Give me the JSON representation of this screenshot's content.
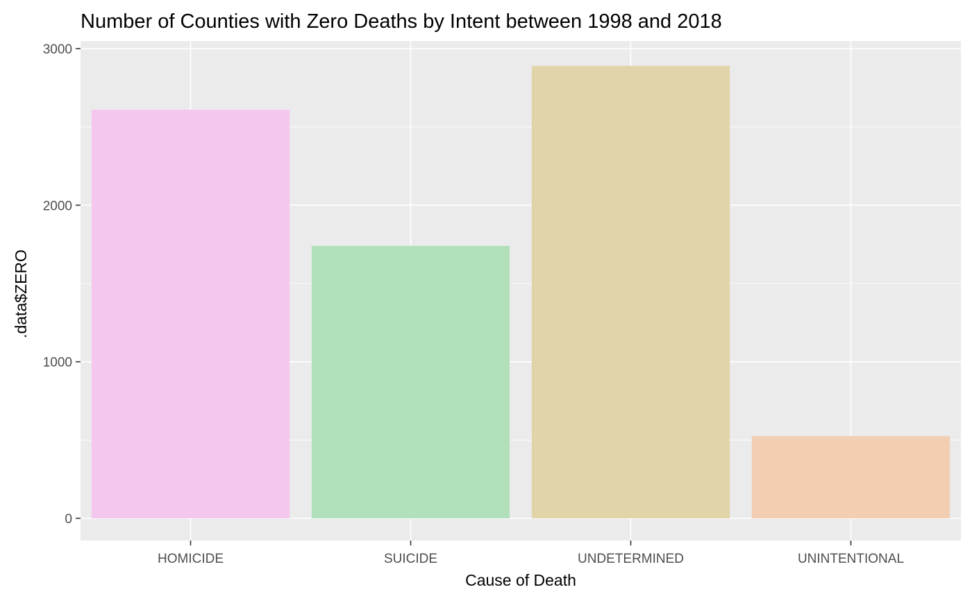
{
  "chart_data": {
    "type": "bar",
    "title": "Number of Counties with Zero Deaths by Intent between 1998 and 2018",
    "xlabel": "Cause of Death",
    "ylabel": ".data$ZERO",
    "categories": [
      "HOMICIDE",
      "SUICIDE",
      "UNDETERMINED",
      "UNINTENTIONAL"
    ],
    "values": [
      2610,
      1740,
      2890,
      525
    ],
    "colors": [
      "#F4C7EE",
      "#B1E0BB",
      "#E0D4A8",
      "#F2CEB2"
    ],
    "yticks": [
      0,
      1000,
      2000,
      3000
    ],
    "ylim": [
      -150,
      3020
    ],
    "grid": true,
    "legend": "none",
    "panel_background": "#EBEBEB",
    "grid_color": "#FFFFFF"
  }
}
